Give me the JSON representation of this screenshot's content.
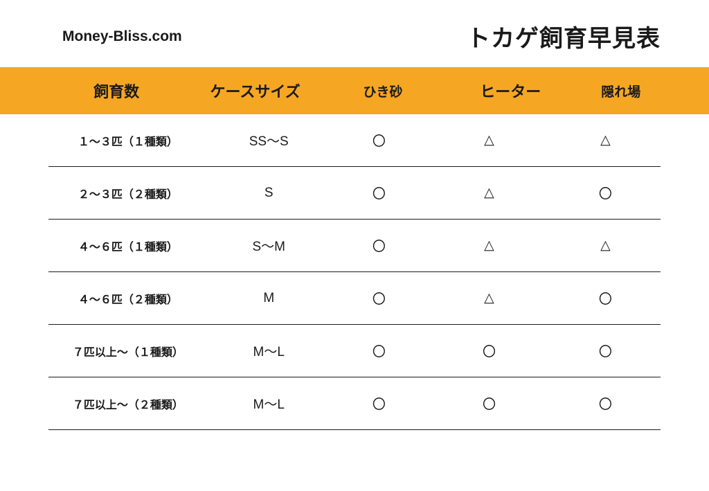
{
  "header": {
    "logo": "Money-Bliss.com",
    "title": "トカゲ飼育早見表"
  },
  "table": {
    "type": "table",
    "header_bg_color": "#f5a623",
    "columns": [
      {
        "label": "飼育数",
        "size": "large"
      },
      {
        "label": "ケースサイズ",
        "size": "large"
      },
      {
        "label": "ひき砂",
        "size": "medium"
      },
      {
        "label": "ヒーター",
        "size": "large"
      },
      {
        "label": "隠れ場",
        "size": "medium"
      }
    ],
    "rows": [
      {
        "count": "１〜３匹（１種類）",
        "case_size": "SS〜S",
        "sand": "〇",
        "heater": "△",
        "hideout": "△"
      },
      {
        "count": "２〜３匹（２種類）",
        "case_size": "S",
        "sand": "〇",
        "heater": "△",
        "hideout": "〇"
      },
      {
        "count": "４〜６匹（１種類）",
        "case_size": "S〜M",
        "sand": "〇",
        "heater": "△",
        "hideout": "△"
      },
      {
        "count": "４〜６匹（２種類）",
        "case_size": "M",
        "sand": "〇",
        "heater": "△",
        "hideout": "〇"
      },
      {
        "count": "７匹以上〜（１種類）",
        "case_size": "M〜L",
        "sand": "〇",
        "heater": "〇",
        "hideout": "〇"
      },
      {
        "count": "７匹以上〜（２種類）",
        "case_size": "M〜L",
        "sand": "〇",
        "heater": "〇",
        "hideout": "〇"
      }
    ]
  }
}
